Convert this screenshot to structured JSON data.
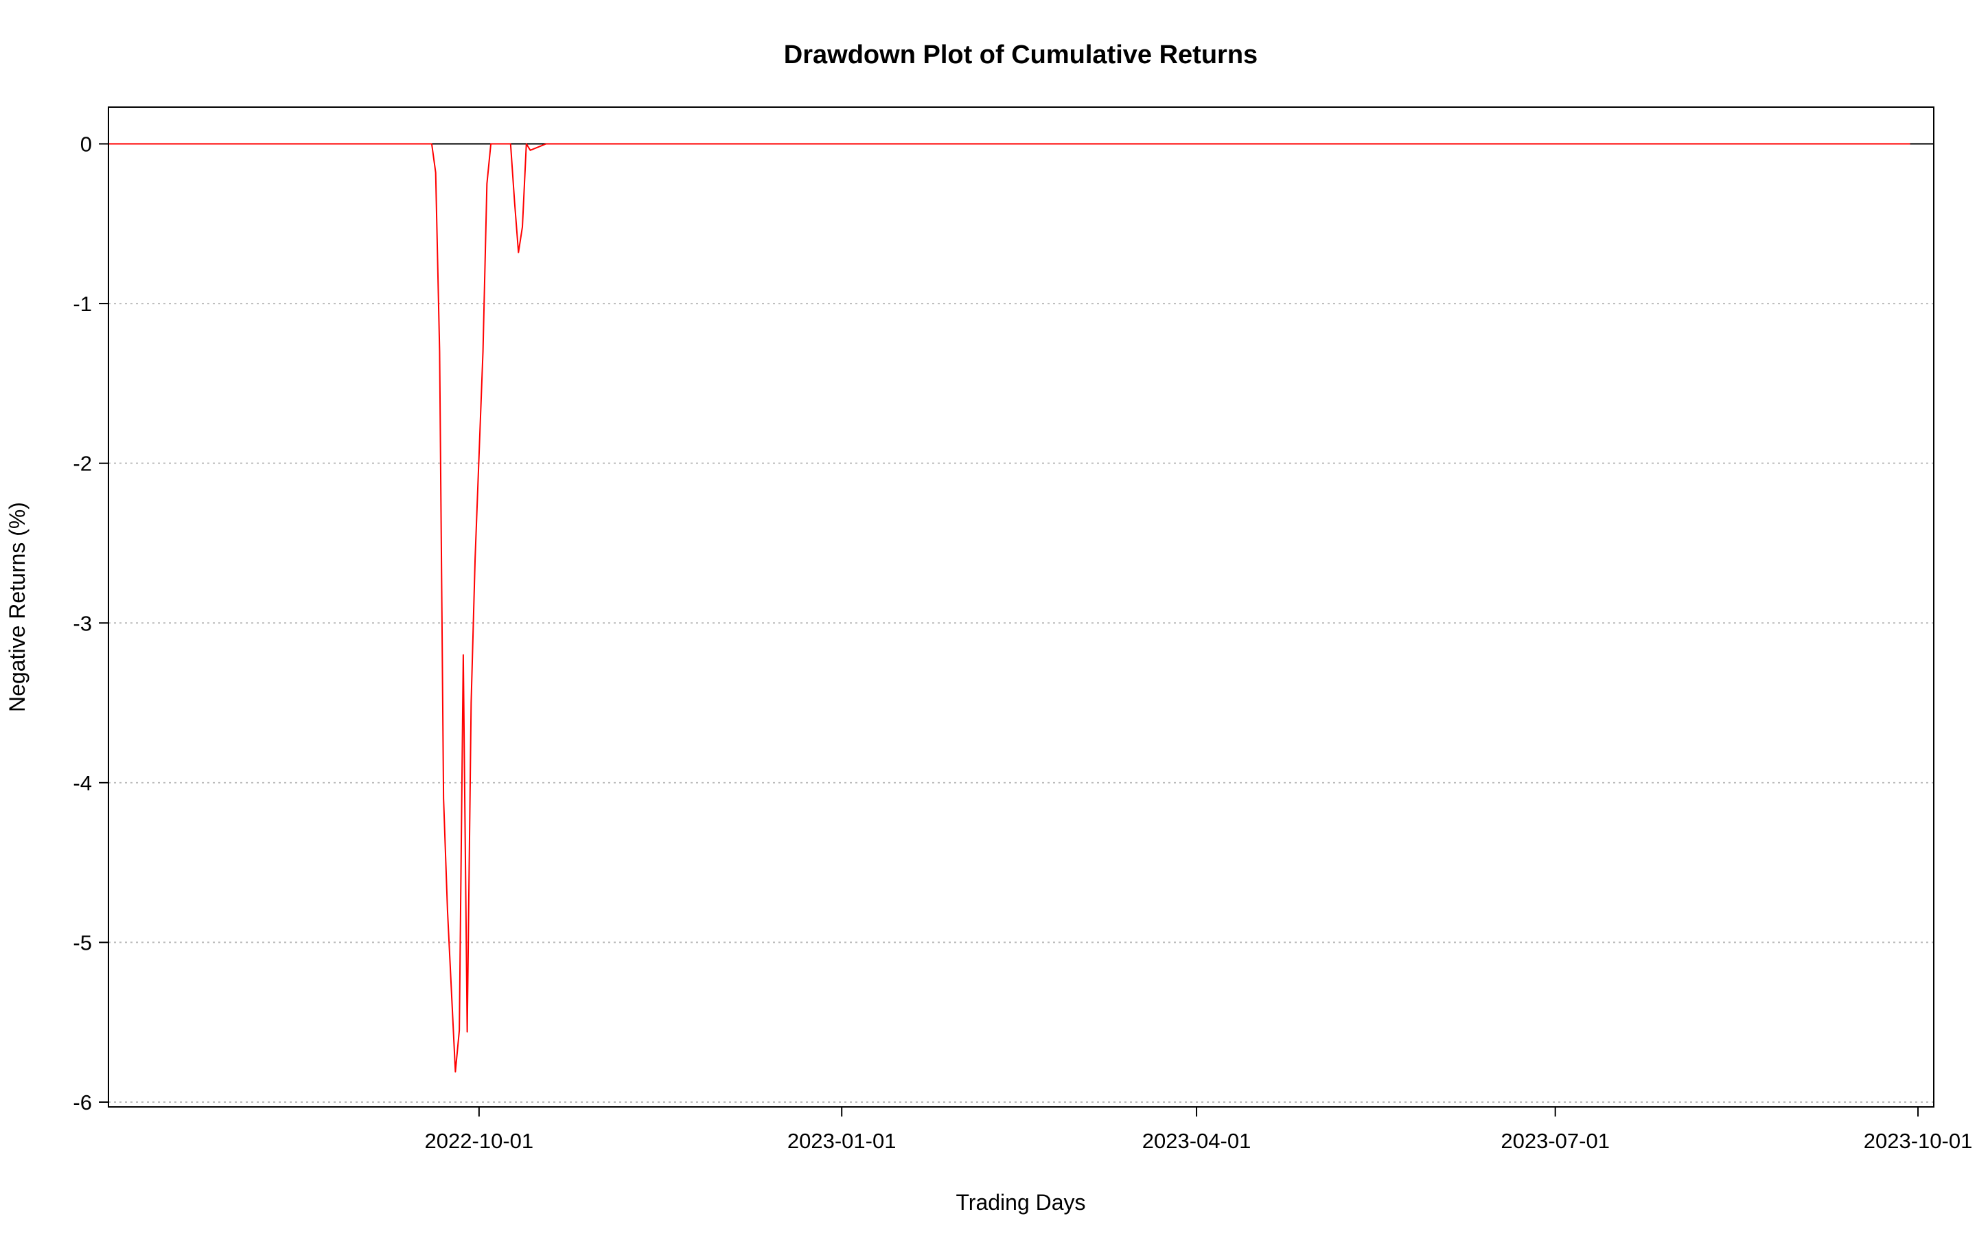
{
  "chart_data": {
    "type": "line",
    "title": "Drawdown Plot of Cumulative Returns",
    "xlabel": "Trading Days",
    "ylabel": "Negative Returns (%)",
    "x_axis_type": "date",
    "xlim": [
      "2022-06-29",
      "2023-10-05"
    ],
    "ylim": [
      -6.03,
      0.23
    ],
    "x_ticks": [
      {
        "value": "2022-10-01",
        "label": "2022-10-01"
      },
      {
        "value": "2023-01-01",
        "label": "2023-01-01"
      },
      {
        "value": "2023-04-01",
        "label": "2023-04-01"
      },
      {
        "value": "2023-07-01",
        "label": "2023-07-01"
      },
      {
        "value": "2023-10-01",
        "label": "2023-10-01"
      }
    ],
    "y_ticks": [
      {
        "value": 0,
        "label": "0"
      },
      {
        "value": -1,
        "label": "-1"
      },
      {
        "value": -2,
        "label": "-2"
      },
      {
        "value": -3,
        "label": "-3"
      },
      {
        "value": -4,
        "label": "-4"
      },
      {
        "value": -5,
        "label": "-5"
      },
      {
        "value": -6,
        "label": "-6"
      }
    ],
    "grid": {
      "horizontal": true,
      "vertical": false,
      "style": "dotted",
      "color": "#bbbbbb"
    },
    "reference_line": {
      "y": 0,
      "color": "#000000"
    },
    "series": [
      {
        "color": "#ff0000",
        "points": [
          {
            "x": "2022-06-29",
            "y": 0
          },
          {
            "x": "2022-09-19",
            "y": 0
          },
          {
            "x": "2022-09-20",
            "y": -0.18
          },
          {
            "x": "2022-09-21",
            "y": -1.3
          },
          {
            "x": "2022-09-22",
            "y": -4.1
          },
          {
            "x": "2022-09-23",
            "y": -4.8
          },
          {
            "x": "2022-09-25",
            "y": -5.81
          },
          {
            "x": "2022-09-26",
            "y": -5.55
          },
          {
            "x": "2022-09-27",
            "y": -3.2
          },
          {
            "x": "2022-09-28",
            "y": -5.56
          },
          {
            "x": "2022-09-29",
            "y": -3.5
          },
          {
            "x": "2022-09-30",
            "y": -2.6
          },
          {
            "x": "2022-10-02",
            "y": -1.3
          },
          {
            "x": "2022-10-03",
            "y": -0.25
          },
          {
            "x": "2022-10-04",
            "y": 0
          },
          {
            "x": "2022-10-09",
            "y": 0
          },
          {
            "x": "2022-10-10",
            "y": -0.36
          },
          {
            "x": "2022-10-11",
            "y": -0.68
          },
          {
            "x": "2022-10-12",
            "y": -0.52
          },
          {
            "x": "2022-10-13",
            "y": 0
          },
          {
            "x": "2022-10-14",
            "y": -0.04
          },
          {
            "x": "2022-10-16",
            "y": -0.02
          },
          {
            "x": "2022-10-18",
            "y": 0
          },
          {
            "x": "2023-09-29",
            "y": 0
          }
        ]
      }
    ]
  }
}
